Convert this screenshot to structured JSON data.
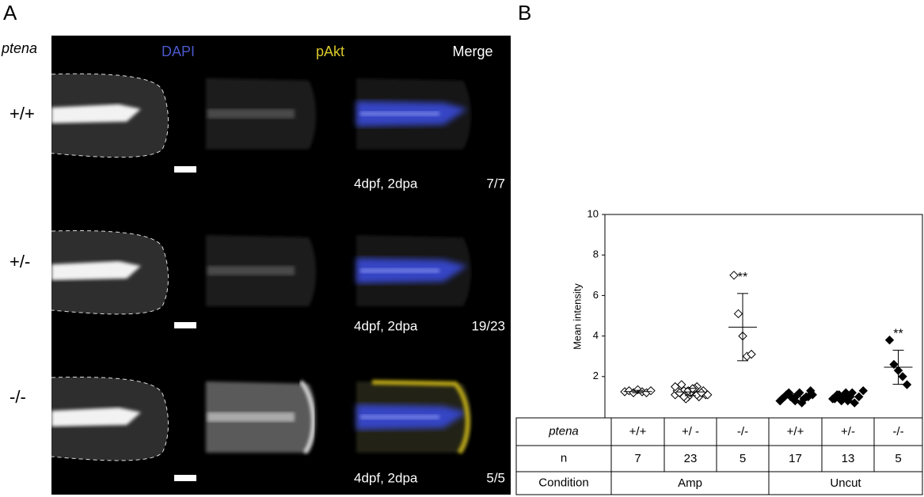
{
  "panel_a": {
    "label": "A",
    "row_header": "ptena",
    "columns": [
      "DAPI",
      "pAkt",
      "Merge"
    ],
    "rows": [
      {
        "genotype": "+/+",
        "caption": "4dpf, 2dpa",
        "count": "7/7"
      },
      {
        "genotype": "+/-",
        "caption": "4dpf, 2dpa",
        "count": "19/23"
      },
      {
        "genotype": "-/-",
        "caption": "4dpf, 2dpa",
        "count": "5/5"
      }
    ]
  },
  "chart_data": {
    "type": "scatter",
    "panel_label": "B",
    "y_label": "Mean intensity",
    "ylim": [
      0,
      10
    ],
    "yticks": [
      2,
      4,
      6,
      8,
      10
    ],
    "row_labels": [
      "ptena",
      "n",
      "Condition"
    ],
    "conditions": [
      {
        "name": "Amp",
        "marker": "open",
        "groups": [
          {
            "genotype": "+/+",
            "n": 7,
            "values": [
              1.25,
              1.3,
              1.2,
              1.35,
              1.25,
              1.2,
              1.3
            ],
            "mean": 1.26,
            "sd": 0.06
          },
          {
            "genotype": "+/ -",
            "n": 23,
            "values": [
              1.1,
              1.2,
              1.3,
              1.0,
              1.4,
              1.5,
              1.2,
              1.1,
              1.3,
              1.6,
              0.9,
              1.2,
              1.4,
              1.0,
              1.3,
              1.1,
              1.5,
              1.2,
              1.0,
              1.3,
              1.4,
              1.1,
              1.2
            ],
            "mean": 1.24,
            "sd": 0.18
          },
          {
            "genotype": "-/-",
            "n": 5,
            "values": [
              7.0,
              5.1,
              4.0,
              3.0,
              3.1
            ],
            "mean": 4.44,
            "sd": 1.66,
            "significance": "**"
          }
        ]
      },
      {
        "name": "Uncut",
        "marker": "filled",
        "groups": [
          {
            "genotype": "+/+",
            "n": 17,
            "values": [
              0.8,
              1.0,
              1.2,
              0.9,
              1.1,
              0.7,
              1.0,
              1.3,
              0.9,
              1.1,
              1.0,
              0.8,
              1.2,
              0.9,
              1.0,
              1.1,
              0.8
            ],
            "mean": 0.99,
            "sd": 0.17
          },
          {
            "genotype": "+/-",
            "n": 13,
            "values": [
              0.9,
              1.1,
              0.8,
              1.2,
              1.0,
              0.7,
              1.0,
              1.3,
              0.9,
              1.1,
              1.0,
              0.8,
              1.2
            ],
            "mean": 1.0,
            "sd": 0.18
          },
          {
            "genotype": "-/-",
            "n": 5,
            "values": [
              3.8,
              2.6,
              2.3,
              2.0,
              1.6
            ],
            "mean": 2.46,
            "sd": 0.84,
            "significance": "**"
          }
        ]
      }
    ]
  }
}
